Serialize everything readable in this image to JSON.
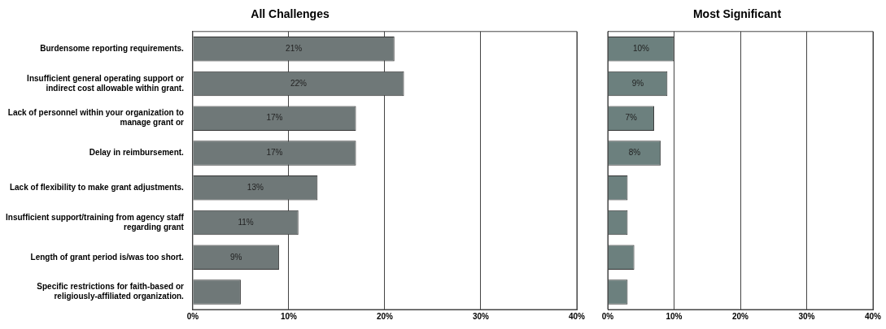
{
  "chart_data": [
    {
      "type": "bar",
      "orientation": "horizontal",
      "title": "All Challenges",
      "categories": [
        "Burdensome reporting requirements.",
        "Insufficient general operating support or indirect cost allowable within grant.",
        "Lack of personnel within your organization to manage grant or",
        "Delay in reimbursement.",
        "Lack of flexibility to make grant adjustments.",
        "Insufficient support/training from agency staff regarding grant",
        "Length of grant period is/was too short.",
        "Specific restrictions for faith-based or religiously-affiliated organization."
      ],
      "values": [
        21,
        22,
        17,
        17,
        13,
        11,
        9,
        5
      ],
      "value_labels": [
        "21%",
        "22%",
        "17%",
        "17%",
        "13%",
        "11%",
        "9%",
        null
      ],
      "color": "#6f7878",
      "xlim": [
        0,
        40
      ],
      "xticks": [
        {
          "value": 0,
          "label": "0%"
        },
        {
          "value": 10,
          "label": "10%"
        },
        {
          "value": 20,
          "label": "20%"
        },
        {
          "value": 30,
          "label": "30%"
        },
        {
          "value": 40,
          "label": "40%"
        }
      ],
      "grid": "x"
    },
    {
      "type": "bar",
      "orientation": "horizontal",
      "title": "Most Significant",
      "categories": [
        null,
        null,
        null,
        null,
        null,
        null,
        null,
        null
      ],
      "values": [
        10,
        9,
        7,
        8,
        3,
        3,
        4,
        3
      ],
      "value_labels": [
        "10%",
        "9%",
        "7%",
        "8%",
        null,
        null,
        null,
        null
      ],
      "color": "#6c807e",
      "xlim": [
        0,
        40
      ],
      "xticks": [
        {
          "value": 0,
          "label": "0%"
        },
        {
          "value": 10,
          "label": "10%"
        },
        {
          "value": 20,
          "label": "20%"
        },
        {
          "value": 30,
          "label": "30%"
        },
        {
          "value": 40,
          "label": "40%"
        }
      ],
      "grid": "x",
      "tick_labels": "x"
    }
  ]
}
